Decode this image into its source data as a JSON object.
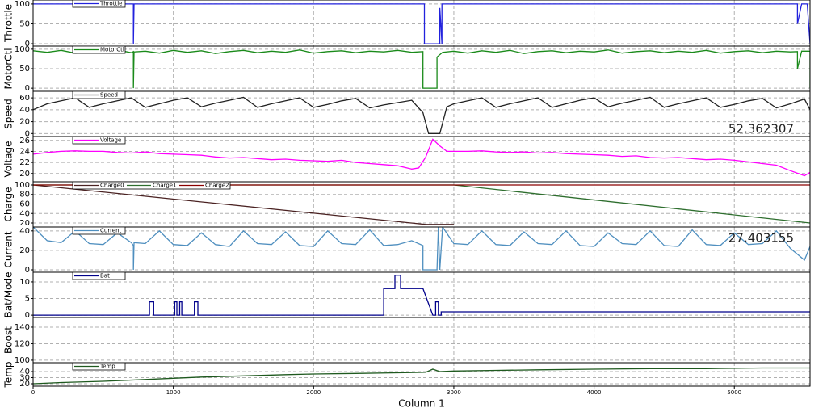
{
  "chart_data": [
    {
      "type": "line",
      "y_label": "Throttle",
      "xlim": [
        0,
        5540
      ],
      "xticks": [
        0,
        1000,
        2000,
        3000,
        4000,
        5000
      ],
      "ylim": [
        -6,
        110
      ],
      "yticks": [
        0,
        50,
        100
      ],
      "grid": true,
      "series": [
        {
          "name": "Throttle",
          "color": "#2222dd",
          "x": [
            0,
            715,
            715,
            720,
            2790,
            2790,
            2900,
            2900,
            2915,
            2915,
            2930,
            5450,
            5450,
            5480,
            5520,
            5540
          ],
          "values": [
            100,
            100,
            0,
            100,
            100,
            0,
            0,
            90,
            0,
            100,
            100,
            100,
            50,
            100,
            100,
            0
          ]
        }
      ]
    },
    {
      "type": "line",
      "y_label": "MotorCtl",
      "xlim": [
        0,
        5540
      ],
      "xticks": [
        0,
        1000,
        2000,
        3000,
        4000,
        5000
      ],
      "ylim": [
        -8,
        108
      ],
      "yticks": [
        0,
        50,
        100
      ],
      "grid": true,
      "series": [
        {
          "name": "MotorCtl",
          "color": "#1a8a1a",
          "x": [
            0,
            100,
            200,
            300,
            400,
            500,
            600,
            700,
            715,
            715,
            720,
            800,
            900,
            1000,
            1100,
            1200,
            1300,
            1400,
            1500,
            1600,
            1700,
            1800,
            1900,
            2000,
            2100,
            2200,
            2300,
            2400,
            2500,
            2600,
            2700,
            2780,
            2780,
            2880,
            2880,
            2920,
            3000,
            3100,
            3200,
            3300,
            3400,
            3500,
            3600,
            3700,
            3800,
            3900,
            4000,
            4100,
            4200,
            4300,
            4400,
            4500,
            4600,
            4700,
            4800,
            4900,
            5000,
            5100,
            5200,
            5300,
            5400,
            5450,
            5450,
            5480,
            5540,
            5540
          ],
          "values": [
            96,
            92,
            97,
            90,
            95,
            93,
            98,
            91,
            94,
            0,
            93,
            95,
            90,
            97,
            92,
            96,
            89,
            94,
            97,
            91,
            95,
            92,
            98,
            90,
            94,
            96,
            91,
            95,
            93,
            97,
            92,
            94,
            0,
            0,
            80,
            92,
            95,
            90,
            96,
            92,
            97,
            89,
            94,
            96,
            91,
            95,
            93,
            98,
            90,
            94,
            96,
            91,
            95,
            92,
            97,
            90,
            94,
            96,
            91,
            95,
            93,
            94,
            50,
            95,
            95,
            0
          ]
        }
      ]
    },
    {
      "type": "line",
      "y_label": "Speed",
      "xlim": [
        0,
        5540
      ],
      "xticks": [
        0,
        1000,
        2000,
        3000,
        4000,
        5000
      ],
      "ylim": [
        -5,
        71
      ],
      "yticks": [
        0,
        20,
        40,
        60
      ],
      "grid": true,
      "annotation": "52.362307",
      "annotation_position": "bottom-right",
      "series": [
        {
          "name": "Speed",
          "color": "#222222",
          "x": [
            0,
            100,
            200,
            300,
            400,
            500,
            600,
            700,
            800,
            900,
            1000,
            1100,
            1200,
            1300,
            1400,
            1500,
            1600,
            1700,
            1800,
            1900,
            2000,
            2100,
            2200,
            2300,
            2400,
            2500,
            2600,
            2700,
            2780,
            2820,
            2900,
            2950,
            3000,
            3100,
            3200,
            3300,
            3400,
            3500,
            3600,
            3700,
            3800,
            3900,
            4000,
            4100,
            4200,
            4300,
            4400,
            4500,
            4600,
            4700,
            4800,
            4900,
            5000,
            5100,
            5200,
            5300,
            5400,
            5500,
            5540
          ],
          "values": [
            40,
            50,
            55,
            60,
            44,
            50,
            55,
            60,
            44,
            50,
            56,
            60,
            45,
            51,
            56,
            61,
            44,
            50,
            55,
            60,
            44,
            49,
            55,
            59,
            43,
            48,
            52,
            56,
            35,
            0,
            0,
            45,
            50,
            55,
            60,
            44,
            50,
            55,
            60,
            44,
            50,
            56,
            60,
            45,
            51,
            56,
            61,
            44,
            50,
            55,
            60,
            44,
            49,
            55,
            59,
            43,
            50,
            58,
            40
          ]
        }
      ]
    },
    {
      "type": "line",
      "y_label": "Voltage",
      "xlim": [
        0,
        5540
      ],
      "xticks": [
        0,
        1000,
        2000,
        3000,
        4000,
        5000
      ],
      "ylim": [
        18.5,
        26.7
      ],
      "yticks": [
        20,
        22,
        24,
        26
      ],
      "grid": true,
      "series": [
        {
          "name": "Voltage",
          "color": "#ff00ff",
          "x": [
            0,
            100,
            200,
            300,
            400,
            500,
            600,
            700,
            800,
            900,
            1000,
            1100,
            1200,
            1300,
            1400,
            1500,
            1600,
            1700,
            1800,
            1900,
            2000,
            2100,
            2200,
            2300,
            2400,
            2500,
            2600,
            2700,
            2750,
            2800,
            2850,
            2900,
            2950,
            3000,
            3100,
            3200,
            3300,
            3400,
            3500,
            3600,
            3700,
            3800,
            3900,
            4000,
            4100,
            4200,
            4300,
            4400,
            4500,
            4600,
            4700,
            4800,
            4900,
            5000,
            5100,
            5200,
            5300,
            5400,
            5500,
            5540
          ],
          "values": [
            23.5,
            23.8,
            24,
            24.1,
            24,
            24,
            23.8,
            23.7,
            23.9,
            23.6,
            23.5,
            23.4,
            23.3,
            23,
            22.8,
            22.9,
            22.7,
            22.5,
            22.6,
            22.4,
            22.3,
            22.2,
            22.4,
            22,
            21.8,
            21.6,
            21.4,
            20.8,
            21,
            23,
            26.2,
            25,
            24,
            24,
            24,
            24.1,
            23.9,
            23.8,
            23.9,
            23.7,
            23.8,
            23.6,
            23.5,
            23.4,
            23.3,
            23.1,
            23.2,
            22.9,
            22.8,
            22.9,
            22.7,
            22.5,
            22.6,
            22.4,
            22.1,
            21.8,
            21.5,
            20.5,
            19.6,
            20.2
          ]
        }
      ]
    },
    {
      "type": "line",
      "y_label": "Charge",
      "xlim": [
        0,
        5540
      ],
      "xticks": [
        0,
        1000,
        2000,
        3000,
        4000,
        5000
      ],
      "ylim": [
        11.5,
        106.8
      ],
      "yticks": [
        20,
        40,
        60,
        80,
        100
      ],
      "grid": true,
      "series": [
        {
          "name": "Charge0",
          "color": "#4a2222",
          "x": [
            0,
            2800,
            3000
          ],
          "values": [
            100,
            17,
            17
          ]
        },
        {
          "name": "Charge1",
          "color": "#2e6e2e",
          "x": [
            0,
            3000,
            5540
          ],
          "values": [
            100,
            100,
            20
          ]
        },
        {
          "name": "Charge2",
          "color": "#8b0000",
          "x": [
            0,
            5540
          ],
          "values": [
            100,
            100
          ]
        }
      ]
    },
    {
      "type": "line",
      "y_label": "Current",
      "xlim": [
        0,
        5540
      ],
      "xticks": [
        0,
        1000,
        2000,
        3000,
        4000,
        5000
      ],
      "ylim": [
        -2.5,
        44
      ],
      "yticks": [
        0,
        20,
        40
      ],
      "grid": true,
      "annotation": "27.403155",
      "annotation_position": "top-right",
      "series": [
        {
          "name": "Current",
          "color": "#4f8fbf",
          "x": [
            0,
            100,
            200,
            300,
            400,
            500,
            600,
            700,
            715,
            715,
            720,
            800,
            900,
            1000,
            1100,
            1200,
            1300,
            1400,
            1500,
            1600,
            1700,
            1800,
            1900,
            2000,
            2100,
            2200,
            2300,
            2400,
            2500,
            2600,
            2700,
            2780,
            2780,
            2880,
            2890,
            2900,
            2920,
            3000,
            3100,
            3200,
            3300,
            3400,
            3500,
            3600,
            3700,
            3800,
            3900,
            4000,
            4100,
            4200,
            4300,
            4400,
            4500,
            4600,
            4700,
            4800,
            4900,
            5000,
            5100,
            5200,
            5300,
            5400,
            5500,
            5540
          ],
          "values": [
            44,
            30,
            28,
            40,
            27,
            26,
            38,
            28,
            25,
            0,
            28,
            27,
            40,
            26,
            25,
            38,
            26,
            24,
            40,
            27,
            26,
            39,
            25,
            24,
            40,
            27,
            26,
            41,
            25,
            26,
            30,
            25,
            0,
            0,
            44,
            0,
            44,
            27,
            26,
            40,
            26,
            25,
            39,
            27,
            26,
            40,
            25,
            24,
            38,
            27,
            26,
            40,
            25,
            24,
            41,
            26,
            25,
            38,
            26,
            27,
            40,
            22,
            10,
            24
          ]
        }
      ]
    },
    {
      "type": "line",
      "y_label": "Bat/Mode",
      "xlim": [
        0,
        5540
      ],
      "xticks": [
        0,
        1000,
        2000,
        3000,
        4000,
        5000
      ],
      "ylim": [
        -0.7,
        12.9
      ],
      "yticks": [
        0,
        5,
        10
      ],
      "grid": true,
      "series": [
        {
          "name": "Bat",
          "color": "#00008b",
          "x": [
            0,
            830,
            830,
            860,
            860,
            1010,
            1010,
            1025,
            1025,
            1045,
            1045,
            1060,
            1060,
            1150,
            1150,
            1175,
            1175,
            2500,
            2500,
            2580,
            2580,
            2620,
            2620,
            2780,
            2850,
            2870,
            2870,
            2890,
            2890,
            2910,
            2910,
            5540
          ],
          "values": [
            0,
            0,
            4,
            4,
            0,
            0,
            4,
            4,
            0,
            0,
            4,
            4,
            0,
            0,
            4,
            4,
            0,
            0,
            8,
            8,
            12,
            12,
            8,
            8,
            0,
            0,
            4,
            4,
            0,
            0,
            1,
            1
          ]
        }
      ]
    },
    {
      "type": "line",
      "y_label": "Boost",
      "xlim": [
        0,
        5540
      ],
      "xticks": [
        0,
        1000,
        2000,
        3000,
        4000,
        5000
      ],
      "ylim": [
        97,
        151.7
      ],
      "yticks": [
        100,
        120,
        140
      ],
      "grid": true,
      "series": []
    },
    {
      "type": "line",
      "y_label": "Temp",
      "xlim": [
        0,
        5540
      ],
      "xticks": [
        0,
        1000,
        2000,
        3000,
        4000,
        5000
      ],
      "ylim": [
        16,
        54.7
      ],
      "yticks": [
        20,
        30,
        40
      ],
      "grid": true,
      "x_label": "Column 1",
      "series": [
        {
          "name": "Temp",
          "color": "#1f5a1f",
          "x": [
            0,
            200,
            500,
            800,
            1000,
            1200,
            1500,
            1800,
            2000,
            2300,
            2600,
            2800,
            2850,
            2900,
            3000,
            3300,
            3600,
            4000,
            4400,
            4800,
            5200,
            5540
          ],
          "values": [
            20,
            22,
            24,
            27,
            29,
            31,
            33,
            35,
            36,
            37,
            38,
            39,
            44,
            40,
            41,
            42,
            43,
            44,
            45,
            45,
            46,
            46
          ]
        }
      ]
    }
  ]
}
